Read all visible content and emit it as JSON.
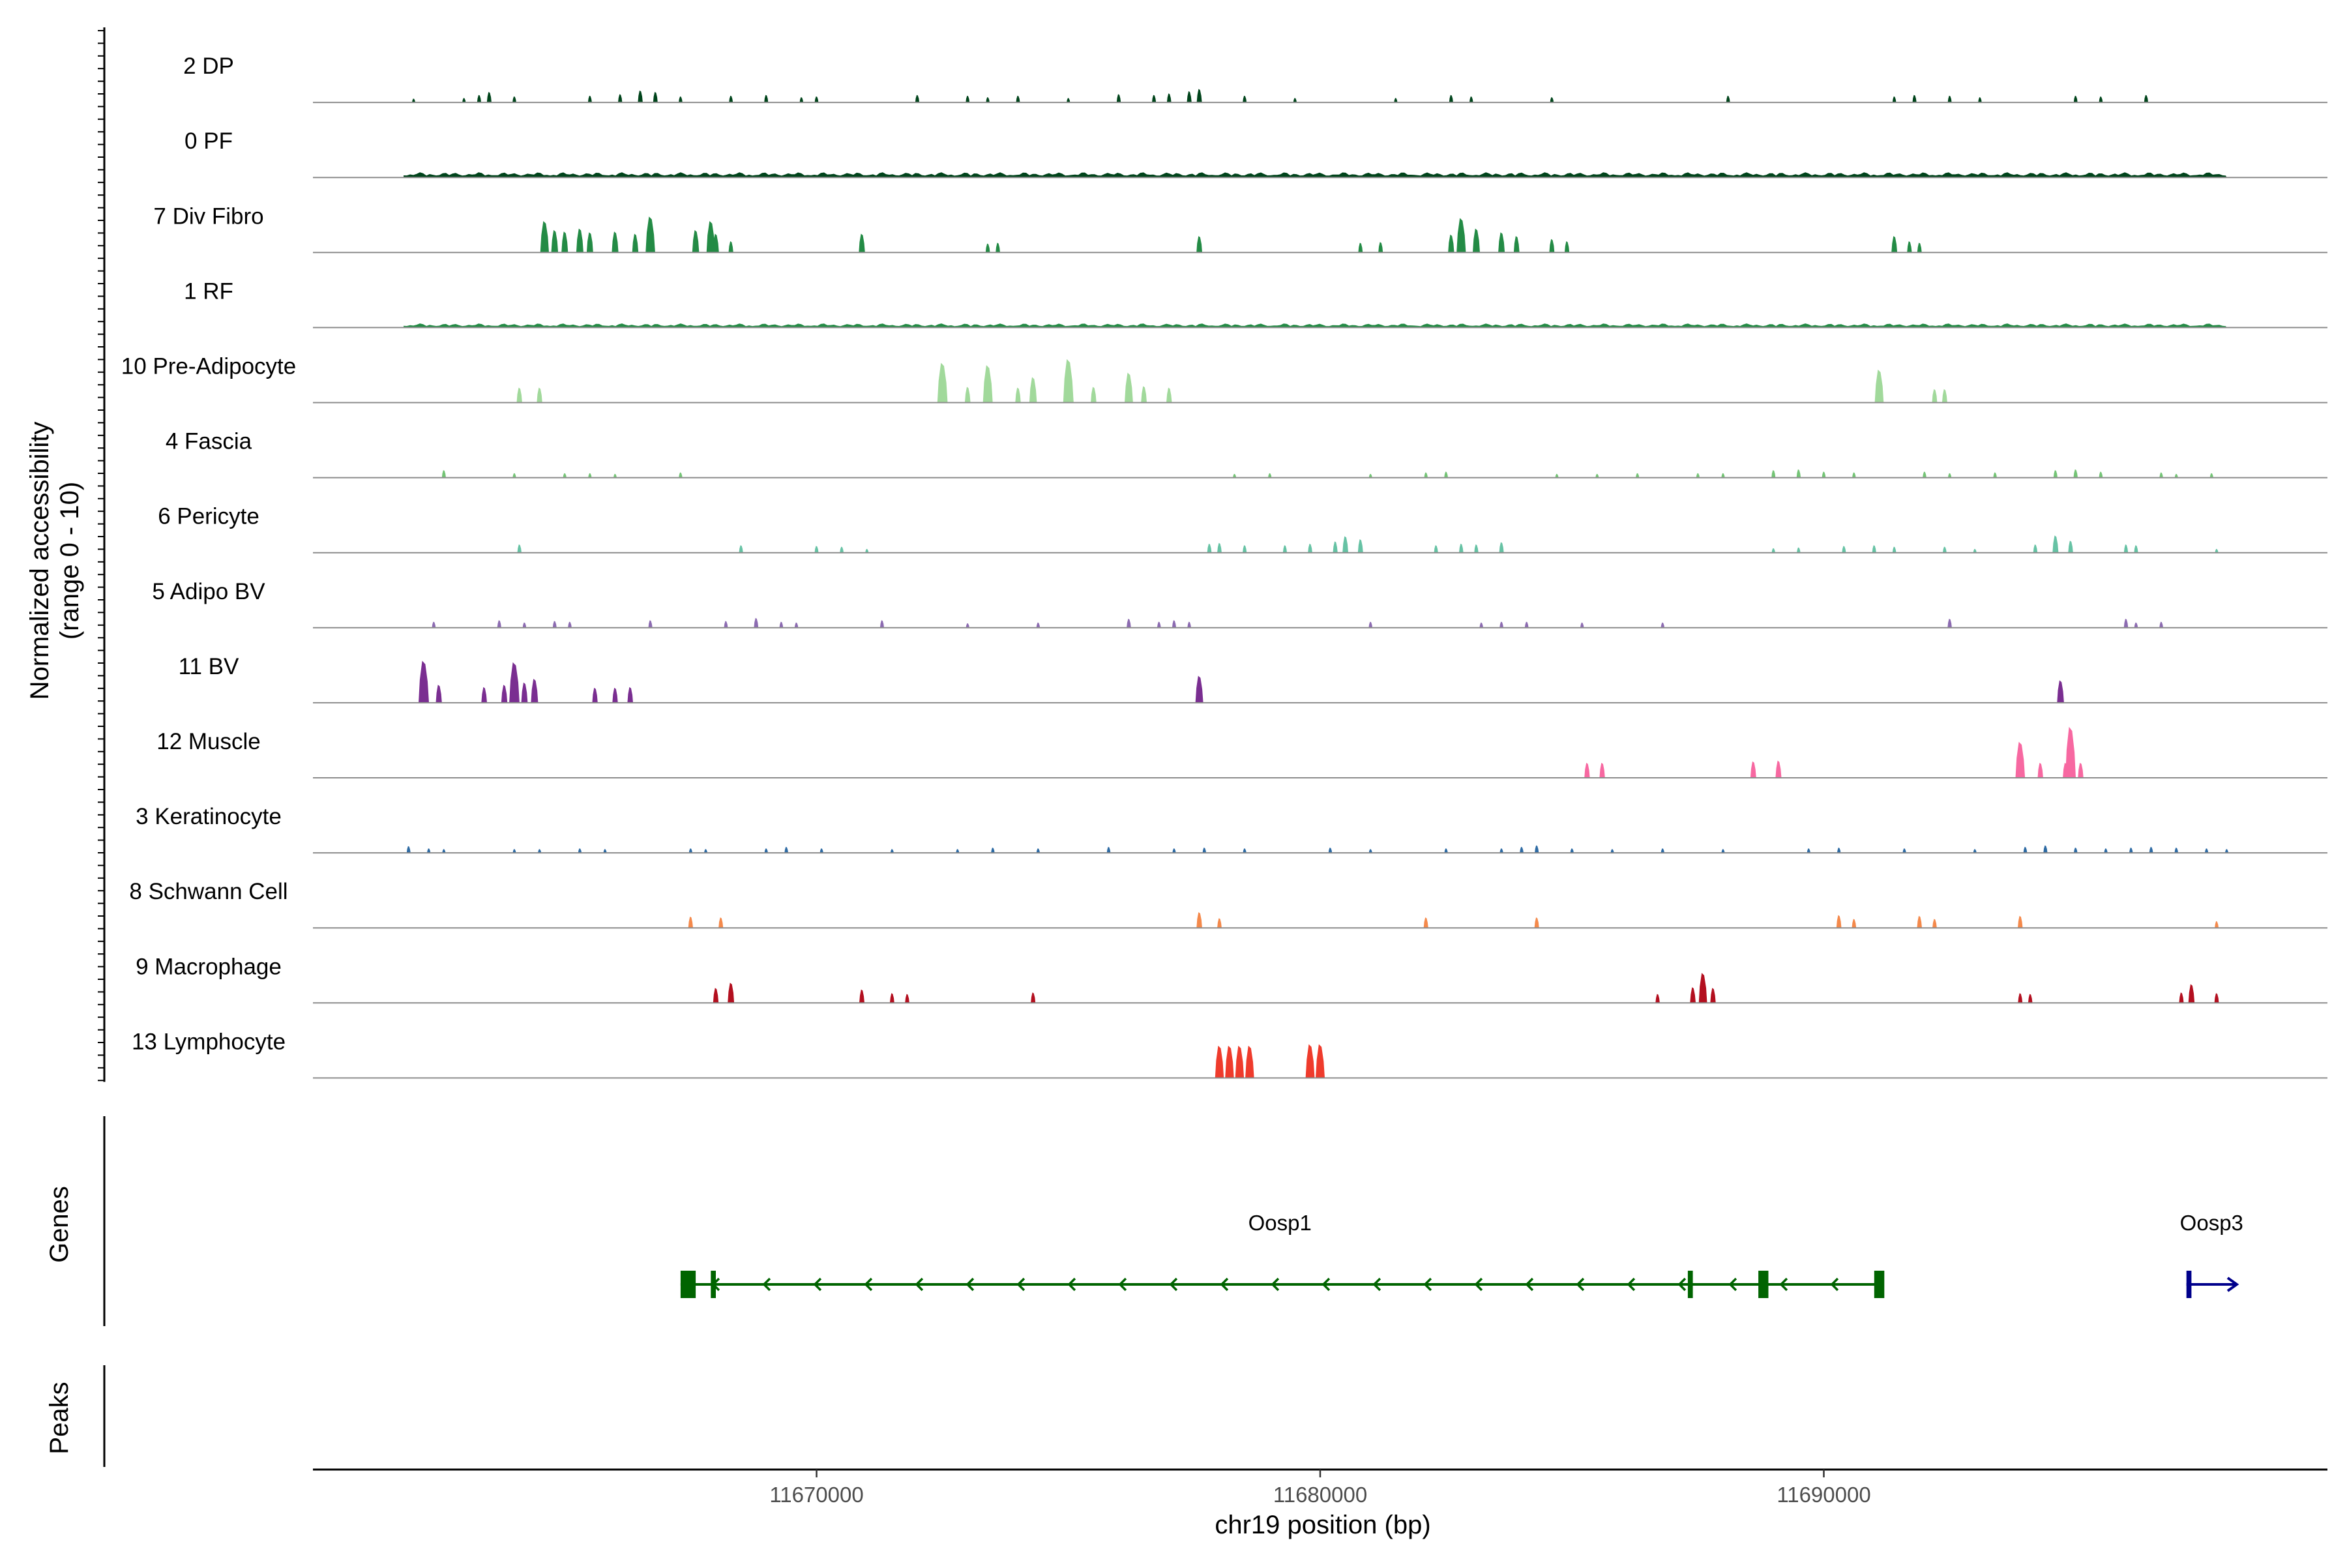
{
  "chart_data": {
    "type": "area",
    "subtype": "genome-coverage-track",
    "y_axis_label_lines": [
      "Normalized accessibility",
      "(range 0 - 10)"
    ],
    "y_range": [
      0,
      10
    ],
    "x_label": "chr19 position (bp)",
    "x_range": [
      11660000,
      11700000
    ],
    "x_ticks": [
      {
        "value": 11670000,
        "label": "11670000"
      },
      {
        "value": 11680000,
        "label": "11680000"
      },
      {
        "value": 11690000,
        "label": "11690000"
      }
    ],
    "panel_labels": {
      "genes": "Genes",
      "peaks": "Peaks"
    },
    "tracks": [
      {
        "name": "2 DP",
        "color": "#00441b",
        "peaks": [
          [
            11662.0,
            0.5
          ],
          [
            11663.0,
            0.6
          ],
          [
            11663.3,
            1.0
          ],
          [
            11663.5,
            1.4
          ],
          [
            11664.0,
            0.8
          ],
          [
            11665.5,
            0.9
          ],
          [
            11666.1,
            1.1
          ],
          [
            11666.5,
            1.6
          ],
          [
            11666.8,
            1.4
          ],
          [
            11667.3,
            0.8
          ],
          [
            11668.3,
            0.9
          ],
          [
            11669.0,
            1.0
          ],
          [
            11669.7,
            0.7
          ],
          [
            11670.0,
            0.8
          ],
          [
            11672.0,
            1.0
          ],
          [
            11673.0,
            0.9
          ],
          [
            11673.4,
            0.7
          ],
          [
            11674.0,
            0.9
          ],
          [
            11675.0,
            0.6
          ],
          [
            11676.0,
            1.1
          ],
          [
            11676.7,
            1.0
          ],
          [
            11677.0,
            1.2
          ],
          [
            11677.4,
            1.5
          ],
          [
            11677.6,
            1.8
          ],
          [
            11678.5,
            0.9
          ],
          [
            11679.5,
            0.6
          ],
          [
            11681.5,
            0.6
          ],
          [
            11682.6,
            1.0
          ],
          [
            11683.0,
            0.8
          ],
          [
            11684.6,
            0.7
          ],
          [
            11688.1,
            0.9
          ],
          [
            11691.4,
            0.8
          ],
          [
            11691.8,
            1.0
          ],
          [
            11692.5,
            0.9
          ],
          [
            11693.1,
            0.7
          ],
          [
            11695.0,
            0.9
          ],
          [
            11695.5,
            0.8
          ],
          [
            11696.4,
            1.0
          ]
        ]
      },
      {
        "name": "0 PF",
        "color": "#00441b",
        "base": [
          11661.8,
          11698.0,
          0.7
        ],
        "peaks": []
      },
      {
        "name": "7 Div Fibro",
        "color": "#238b45",
        "peaks": [
          [
            11664.6,
            4.2
          ],
          [
            11664.8,
            3.0
          ],
          [
            11665.0,
            2.8
          ],
          [
            11665.3,
            3.2
          ],
          [
            11665.5,
            2.7
          ],
          [
            11666.0,
            2.8
          ],
          [
            11666.4,
            2.5
          ],
          [
            11666.7,
            4.8
          ],
          [
            11667.6,
            3.0
          ],
          [
            11667.9,
            4.2
          ],
          [
            11668.0,
            2.5
          ],
          [
            11668.3,
            1.5
          ],
          [
            11670.9,
            2.5
          ],
          [
            11673.4,
            1.2
          ],
          [
            11673.6,
            1.3
          ],
          [
            11677.6,
            2.2
          ],
          [
            11680.8,
            1.3
          ],
          [
            11681.2,
            1.4
          ],
          [
            11682.6,
            2.4
          ],
          [
            11682.8,
            4.6
          ],
          [
            11683.1,
            3.2
          ],
          [
            11683.6,
            2.7
          ],
          [
            11683.9,
            2.2
          ],
          [
            11684.6,
            1.8
          ],
          [
            11684.9,
            1.5
          ],
          [
            11691.4,
            2.2
          ],
          [
            11691.7,
            1.5
          ],
          [
            11691.9,
            1.3
          ]
        ]
      },
      {
        "name": "1 RF",
        "color": "#238b45",
        "base": [
          11661.8,
          11698.0,
          0.55
        ],
        "peaks": []
      },
      {
        "name": "10 Pre-Adipocyte",
        "color": "#a1d99b",
        "peaks": [
          [
            11664.1,
            2.0
          ],
          [
            11664.5,
            2.0
          ],
          [
            11672.5,
            5.3
          ],
          [
            11673.0,
            2.1
          ],
          [
            11673.4,
            5.0
          ],
          [
            11674.0,
            2.0
          ],
          [
            11674.3,
            3.4
          ],
          [
            11675.0,
            5.8
          ],
          [
            11675.5,
            2.1
          ],
          [
            11676.2,
            4.0
          ],
          [
            11676.5,
            2.2
          ],
          [
            11677.0,
            2.0
          ],
          [
            11691.1,
            4.4
          ],
          [
            11692.2,
            1.8
          ],
          [
            11692.4,
            1.8
          ]
        ]
      },
      {
        "name": "4 Fascia",
        "color": "#74c476",
        "peaks": [
          [
            11662.6,
            1.0
          ],
          [
            11664.0,
            0.6
          ],
          [
            11665.0,
            0.6
          ],
          [
            11665.5,
            0.6
          ],
          [
            11666.0,
            0.5
          ],
          [
            11667.3,
            0.7
          ],
          [
            11678.3,
            0.5
          ],
          [
            11679.0,
            0.6
          ],
          [
            11681.0,
            0.5
          ],
          [
            11682.1,
            0.7
          ],
          [
            11682.5,
            0.8
          ],
          [
            11684.7,
            0.5
          ],
          [
            11685.5,
            0.5
          ],
          [
            11686.3,
            0.6
          ],
          [
            11687.5,
            0.6
          ],
          [
            11688.0,
            0.6
          ],
          [
            11689.0,
            1.0
          ],
          [
            11689.5,
            1.1
          ],
          [
            11690.0,
            0.8
          ],
          [
            11690.6,
            0.7
          ],
          [
            11692.0,
            0.8
          ],
          [
            11692.5,
            0.6
          ],
          [
            11693.4,
            0.7
          ],
          [
            11694.6,
            1.0
          ],
          [
            11695.0,
            1.1
          ],
          [
            11695.5,
            0.8
          ],
          [
            11696.7,
            0.7
          ],
          [
            11697.0,
            0.5
          ],
          [
            11697.7,
            0.6
          ]
        ]
      },
      {
        "name": "6 Pericyte",
        "color": "#66c2a4",
        "peaks": [
          [
            11664.1,
            1.1
          ],
          [
            11668.5,
            1.0
          ],
          [
            11670.0,
            0.9
          ],
          [
            11670.5,
            0.8
          ],
          [
            11671.0,
            0.5
          ],
          [
            11677.8,
            1.2
          ],
          [
            11678.0,
            1.3
          ],
          [
            11678.5,
            1.0
          ],
          [
            11679.3,
            1.0
          ],
          [
            11679.8,
            1.2
          ],
          [
            11680.3,
            1.5
          ],
          [
            11680.5,
            2.2
          ],
          [
            11680.8,
            1.8
          ],
          [
            11682.3,
            1.0
          ],
          [
            11682.8,
            1.2
          ],
          [
            11683.1,
            1.1
          ],
          [
            11683.6,
            1.4
          ],
          [
            11689.0,
            0.6
          ],
          [
            11689.5,
            0.7
          ],
          [
            11690.4,
            0.9
          ],
          [
            11691.0,
            1.0
          ],
          [
            11691.4,
            0.8
          ],
          [
            11692.4,
            0.8
          ],
          [
            11693.0,
            0.5
          ],
          [
            11694.2,
            1.1
          ],
          [
            11694.6,
            2.3
          ],
          [
            11694.9,
            1.6
          ],
          [
            11696.0,
            1.1
          ],
          [
            11696.2,
            1.0
          ],
          [
            11697.8,
            0.5
          ]
        ]
      },
      {
        "name": "5 Adipo BV",
        "color": "#8c6bb1",
        "peaks": [
          [
            11662.4,
            0.8
          ],
          [
            11663.7,
            1.0
          ],
          [
            11664.2,
            0.7
          ],
          [
            11664.8,
            0.9
          ],
          [
            11665.1,
            0.8
          ],
          [
            11666.7,
            1.0
          ],
          [
            11668.2,
            0.9
          ],
          [
            11668.8,
            1.3
          ],
          [
            11669.3,
            0.8
          ],
          [
            11669.6,
            0.7
          ],
          [
            11671.3,
            1.0
          ],
          [
            11673.0,
            0.6
          ],
          [
            11674.4,
            0.7
          ],
          [
            11676.2,
            1.2
          ],
          [
            11676.8,
            0.8
          ],
          [
            11677.1,
            1.0
          ],
          [
            11677.4,
            0.8
          ],
          [
            11681.0,
            0.8
          ],
          [
            11683.2,
            0.7
          ],
          [
            11683.6,
            0.8
          ],
          [
            11684.1,
            0.8
          ],
          [
            11685.2,
            0.7
          ],
          [
            11686.8,
            0.7
          ],
          [
            11692.5,
            1.2
          ],
          [
            11696.0,
            1.2
          ],
          [
            11696.2,
            0.7
          ],
          [
            11696.7,
            0.8
          ]
        ]
      },
      {
        "name": "11 BV",
        "color": "#7a2e91",
        "peaks": [
          [
            11662.2,
            5.6
          ],
          [
            11662.5,
            2.4
          ],
          [
            11663.4,
            2.1
          ],
          [
            11663.8,
            2.4
          ],
          [
            11664.0,
            5.4
          ],
          [
            11664.2,
            2.7
          ],
          [
            11664.4,
            3.2
          ],
          [
            11665.6,
            2.0
          ],
          [
            11666.0,
            2.0
          ],
          [
            11666.3,
            2.1
          ],
          [
            11677.6,
            3.6
          ],
          [
            11694.7,
            3.0
          ]
        ]
      },
      {
        "name": "12 Muscle",
        "color": "#f768a1",
        "peaks": [
          [
            11685.3,
            2.0
          ],
          [
            11685.6,
            2.0
          ],
          [
            11688.6,
            2.2
          ],
          [
            11689.1,
            2.3
          ],
          [
            11693.9,
            4.8
          ],
          [
            11694.3,
            2.0
          ],
          [
            11694.8,
            2.0
          ],
          [
            11694.9,
            6.8
          ],
          [
            11695.1,
            2.0
          ]
        ]
      },
      {
        "name": "3 Keratinocyte",
        "color": "#2d6aa3",
        "peaks": [
          [
            11661.9,
            0.9
          ],
          [
            11662.3,
            0.6
          ],
          [
            11662.6,
            0.5
          ],
          [
            11664.0,
            0.5
          ],
          [
            11664.5,
            0.5
          ],
          [
            11665.3,
            0.6
          ],
          [
            11665.8,
            0.5
          ],
          [
            11667.5,
            0.6
          ],
          [
            11667.8,
            0.5
          ],
          [
            11669.0,
            0.6
          ],
          [
            11669.4,
            0.8
          ],
          [
            11670.1,
            0.6
          ],
          [
            11671.5,
            0.5
          ],
          [
            11672.8,
            0.5
          ],
          [
            11673.5,
            0.7
          ],
          [
            11674.4,
            0.6
          ],
          [
            11675.8,
            0.8
          ],
          [
            11677.1,
            0.6
          ],
          [
            11677.7,
            0.7
          ],
          [
            11678.5,
            0.6
          ],
          [
            11680.2,
            0.7
          ],
          [
            11681.0,
            0.5
          ],
          [
            11682.5,
            0.6
          ],
          [
            11683.6,
            0.6
          ],
          [
            11684.0,
            0.8
          ],
          [
            11684.3,
            1.0
          ],
          [
            11685.0,
            0.6
          ],
          [
            11685.8,
            0.5
          ],
          [
            11686.8,
            0.6
          ],
          [
            11688.0,
            0.5
          ],
          [
            11689.7,
            0.6
          ],
          [
            11690.3,
            0.7
          ],
          [
            11691.6,
            0.6
          ],
          [
            11693.0,
            0.5
          ],
          [
            11694.0,
            0.8
          ],
          [
            11694.4,
            1.0
          ],
          [
            11695.0,
            0.7
          ],
          [
            11695.6,
            0.6
          ],
          [
            11696.1,
            0.7
          ],
          [
            11696.5,
            0.8
          ],
          [
            11697.0,
            0.7
          ],
          [
            11697.6,
            0.6
          ],
          [
            11698.0,
            0.5
          ]
        ]
      },
      {
        "name": "8 Schwann Cell",
        "color": "#f4894b",
        "peaks": [
          [
            11667.5,
            1.5
          ],
          [
            11668.1,
            1.4
          ],
          [
            11677.6,
            2.1
          ],
          [
            11678.0,
            1.3
          ],
          [
            11682.1,
            1.4
          ],
          [
            11684.3,
            1.4
          ],
          [
            11690.3,
            1.7
          ],
          [
            11690.6,
            1.2
          ],
          [
            11691.9,
            1.6
          ],
          [
            11692.2,
            1.2
          ],
          [
            11693.9,
            1.6
          ],
          [
            11697.8,
            0.9
          ]
        ]
      },
      {
        "name": "9 Macrophage",
        "color": "#b30f1f",
        "peaks": [
          [
            11668.0,
            2.0
          ],
          [
            11668.3,
            2.7
          ],
          [
            11670.9,
            1.8
          ],
          [
            11671.5,
            1.3
          ],
          [
            11671.8,
            1.2
          ],
          [
            11674.3,
            1.4
          ],
          [
            11686.7,
            1.2
          ],
          [
            11687.4,
            2.1
          ],
          [
            11687.6,
            4.0
          ],
          [
            11687.8,
            2.0
          ],
          [
            11693.9,
            1.3
          ],
          [
            11694.1,
            1.2
          ],
          [
            11697.1,
            1.4
          ],
          [
            11697.3,
            2.5
          ],
          [
            11697.8,
            1.3
          ]
        ]
      },
      {
        "name": "13 Lymphocyte",
        "color": "#ef3b2c",
        "peaks": [
          [
            11678.0,
            4.3
          ],
          [
            11678.2,
            4.3
          ],
          [
            11678.4,
            4.3
          ],
          [
            11678.6,
            4.3
          ],
          [
            11679.8,
            4.5
          ],
          [
            11680.0,
            4.5
          ]
        ]
      }
    ],
    "genes": [
      {
        "name": "Oosp1",
        "start": 11667.3,
        "end": 11691.1,
        "strand": "-",
        "color": "#006400",
        "exons": [
          [
            11667.3,
            11667.6
          ],
          [
            11667.9,
            11668.0
          ],
          [
            11687.3,
            11687.4
          ],
          [
            11688.7,
            11688.9
          ],
          [
            11691.0,
            11691.2
          ]
        ]
      },
      {
        "name": "Oosp3",
        "start": 11697.2,
        "end": 11698.2,
        "strand": "+",
        "color": "#00008b",
        "exons": [
          [
            11697.2,
            11697.3
          ]
        ]
      }
    ]
  }
}
